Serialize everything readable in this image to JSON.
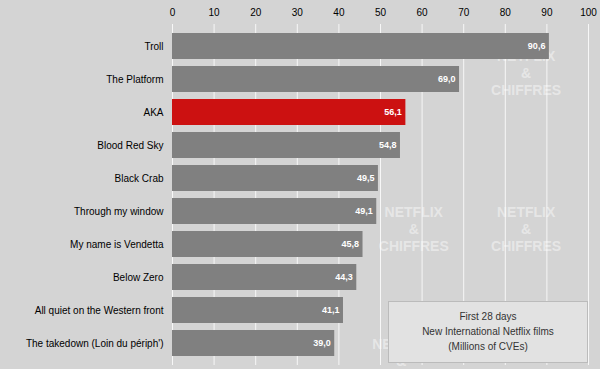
{
  "chart_data": {
    "type": "bar",
    "orientation": "horizontal",
    "categories": [
      "The takedown (Loin du périph')",
      "All quiet on the Western front",
      "Below Zero",
      "My name is Vendetta",
      "Through my window",
      "Black Crab",
      "Blood Red Sky",
      "AKA",
      "The Platform",
      "Troll"
    ],
    "values": [
      39.0,
      41.1,
      44.3,
      45.8,
      49.1,
      49.5,
      54.8,
      56.1,
      69.0,
      90.6
    ],
    "value_labels": [
      "39,0",
      "41,1",
      "44,3",
      "45,8",
      "49,1",
      "49,5",
      "54,8",
      "56,1",
      "69,0",
      "90,6"
    ],
    "data_labels": true,
    "colors": [
      "#808080",
      "#808080",
      "#808080",
      "#808080",
      "#808080",
      "#808080",
      "#808080",
      "#cc1111",
      "#808080",
      "#808080"
    ],
    "xlim": [
      0,
      100
    ],
    "xticks": [
      0,
      10,
      20,
      30,
      40,
      50,
      60,
      70,
      80,
      90,
      100
    ],
    "grid": true,
    "annotations": [
      "First 28 days\nNew International Netflix films\n(Millions of CVEs)",
      "NETFLIX\n&\nCHIFFRES",
      "NETFLIX\n&\nCHIFFRES",
      "NETFLIX\n&\nCHIFFRES",
      "NETFLIX\n&\nCHIFFRES"
    ]
  }
}
